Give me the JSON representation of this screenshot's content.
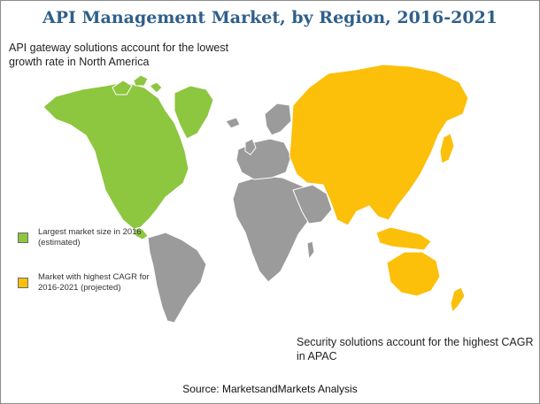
{
  "title": "API Management Market, by Region, 2016-2021",
  "notes": {
    "top": "API gateway solutions account for the lowest growth rate in North America",
    "bottom": "Security solutions account for the highest CAGR in APAC"
  },
  "legend": [
    {
      "label": "Largest market size in 2016 (estimated)",
      "color": "#8dc63f"
    },
    {
      "label": "Market with highest CAGR for 2016-2021 (projected)",
      "color": "#fcbf0a"
    }
  ],
  "colors": {
    "other_regions": "#9b9b9b",
    "title": "#2f5f8a",
    "border": "#8c8c8c"
  },
  "source": "Source: MarketsandMarkets Analysis"
}
